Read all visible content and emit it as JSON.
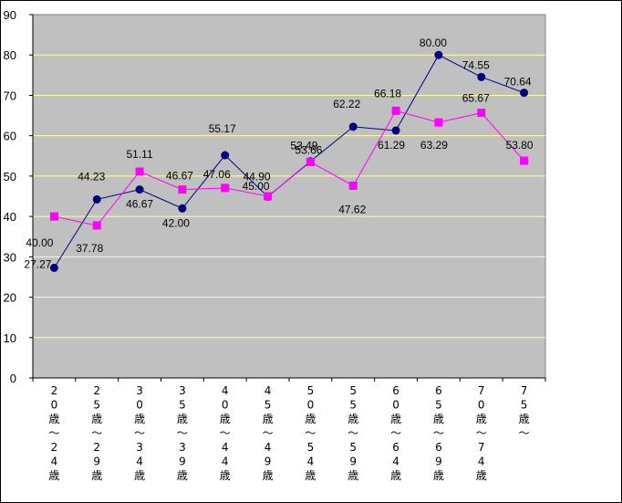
{
  "chart_data": {
    "type": "line",
    "categories": [
      "20歳～24歳",
      "25歳～29歳",
      "30歳～34歳",
      "35歳～39歳",
      "40歳～44歳",
      "45歳～49歳",
      "50歳～54歳",
      "55歳～59歳",
      "60歳～64歳",
      "65歳～69歳",
      "70歳～74歳",
      "75歳～"
    ],
    "ylim": [
      0,
      90
    ],
    "yticks": [
      "0",
      "10",
      "20",
      "30",
      "40",
      "50",
      "60",
      "70",
      "80",
      "90"
    ],
    "grid": true,
    "legend": "none",
    "series": [
      {
        "values": [
          27.27,
          44.23,
          46.67,
          42.0,
          55.17,
          44.9,
          53.66,
          62.22,
          61.29,
          80.0,
          74.55,
          70.64
        ],
        "labels": [
          "27.27",
          "44.23",
          "46.67",
          "42.00",
          "55.17",
          "44.90",
          "53.66",
          "62.22",
          "61.29",
          "80.00",
          "74.55",
          "70.64"
        ],
        "color": "#000080",
        "marker": "circle"
      },
      {
        "values": [
          40.0,
          37.78,
          51.11,
          46.67,
          47.06,
          45.0,
          53.49,
          47.62,
          66.18,
          63.29,
          65.67,
          53.8
        ],
        "labels": [
          "40.00",
          "37.78",
          "51.11",
          "46.67",
          "47.06",
          "45.00",
          "53.49",
          "47.62",
          "66.18",
          "63.29",
          "65.67",
          "53.80"
        ],
        "color": "#ff00ff",
        "marker": "square"
      }
    ],
    "colors": {
      "plot_bg": "#c0c0c0",
      "grid": "#ffff99"
    }
  }
}
